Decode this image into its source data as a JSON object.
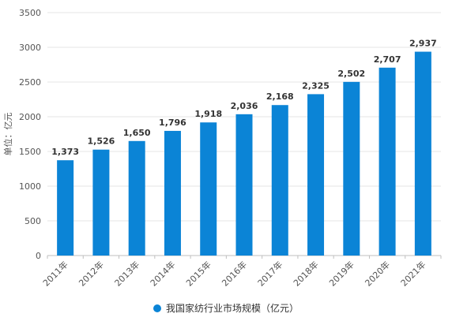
{
  "chart_data": {
    "type": "bar",
    "categories": [
      "2011年",
      "2012年",
      "2013年",
      "2014年",
      "2015年",
      "2016年",
      "2017年",
      "2018年",
      "2019年",
      "2020年",
      "2021年"
    ],
    "series": [
      {
        "name": "我国家纺行业市场规模（亿元）",
        "values": [
          1373,
          1526,
          1650,
          1796,
          1918,
          2036,
          2168,
          2325,
          2502,
          2707,
          2937
        ]
      }
    ],
    "data_labels": [
      "1,373",
      "1,526",
      "1,650",
      "1,796",
      "1,918",
      "2,036",
      "2,168",
      "2,325",
      "2,502",
      "2,707",
      "2,937"
    ],
    "xlabel": "",
    "ylabel": "单位：亿元",
    "yticks": [
      "0",
      "500",
      "1000",
      "1500",
      "2000",
      "2500",
      "3000",
      "3500"
    ],
    "ylim": [
      0,
      3500
    ],
    "grid": true,
    "legend_position": "bottom",
    "bar_color": "#0b84d6"
  }
}
